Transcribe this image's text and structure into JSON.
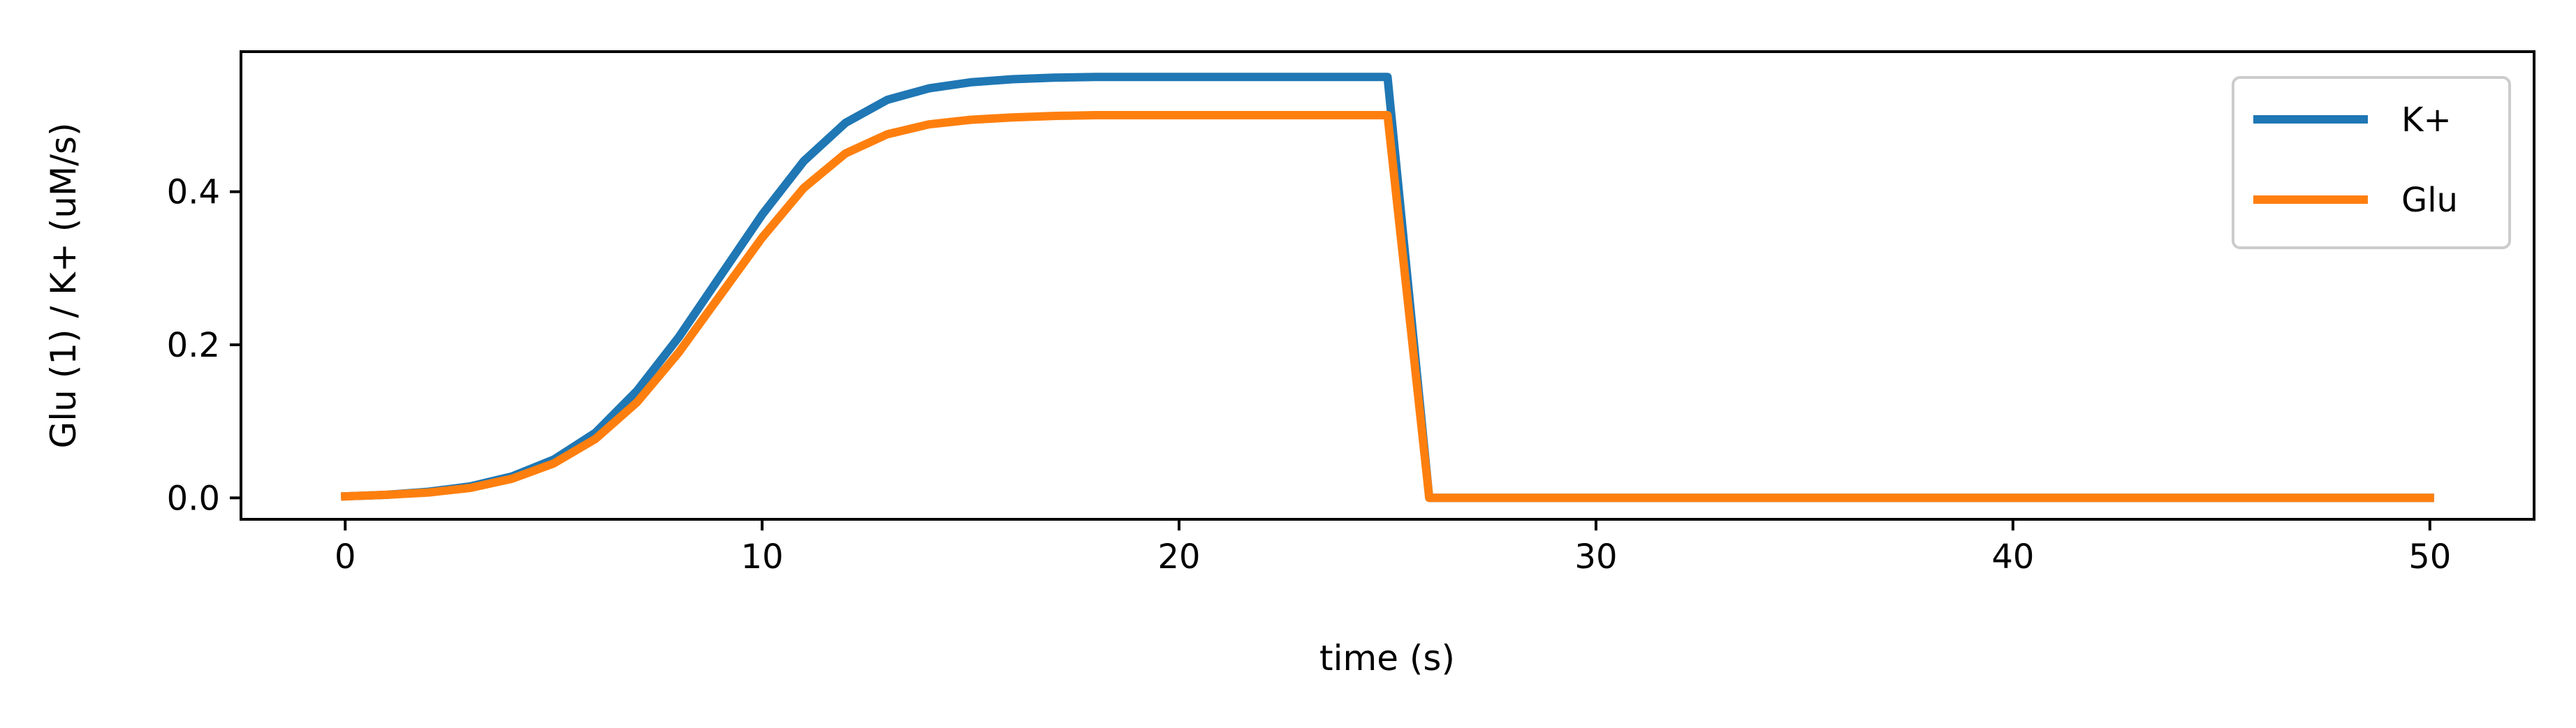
{
  "chart_data": {
    "type": "line",
    "title": "",
    "xlabel": "time (s)",
    "ylabel": "Glu (1) / K+ (uM/s)",
    "xlim": [
      -2.5,
      52.5
    ],
    "ylim": [
      -0.028,
      0.583
    ],
    "xticks": [
      0,
      10,
      20,
      30,
      40,
      50
    ],
    "xtick_labels": [
      "0",
      "10",
      "20",
      "30",
      "40",
      "50"
    ],
    "yticks": [
      0.0,
      0.2,
      0.4
    ],
    "ytick_labels": [
      "0.0",
      "0.2",
      "0.4"
    ],
    "grid": false,
    "legend_position": "top-right",
    "series": [
      {
        "name": "K+",
        "color": "#1f77b4",
        "x": [
          0,
          1,
          2,
          3,
          4,
          5,
          6,
          7,
          8,
          9,
          10,
          11,
          12,
          13,
          14,
          15,
          16,
          17,
          18,
          19,
          20,
          21,
          22,
          23,
          24,
          25,
          26,
          27,
          28,
          29,
          30,
          31,
          32,
          33,
          34,
          35,
          36,
          37,
          38,
          39,
          40,
          41,
          42,
          43,
          44,
          45,
          46,
          47,
          48,
          49,
          50
        ],
        "y": [
          0.002,
          0.004,
          0.008,
          0.015,
          0.028,
          0.05,
          0.085,
          0.14,
          0.21,
          0.29,
          0.37,
          0.44,
          0.49,
          0.52,
          0.535,
          0.543,
          0.547,
          0.549,
          0.55,
          0.55,
          0.55,
          0.55,
          0.55,
          0.55,
          0.55,
          0.55,
          0.0,
          0.0,
          0.0,
          0.0,
          0.0,
          0.0,
          0.0,
          0.0,
          0.0,
          0.0,
          0.0,
          0.0,
          0.0,
          0.0,
          0.0,
          0.0,
          0.0,
          0.0,
          0.0,
          0.0,
          0.0,
          0.0,
          0.0,
          0.0,
          0.0
        ]
      },
      {
        "name": "Glu",
        "color": "#ff7f0e",
        "x": [
          0,
          1,
          2,
          3,
          4,
          5,
          6,
          7,
          8,
          9,
          10,
          11,
          12,
          13,
          14,
          15,
          16,
          17,
          18,
          19,
          20,
          21,
          22,
          23,
          24,
          25,
          26,
          27,
          28,
          29,
          30,
          31,
          32,
          33,
          34,
          35,
          36,
          37,
          38,
          39,
          40,
          41,
          42,
          43,
          44,
          45,
          46,
          47,
          48,
          49,
          50
        ],
        "y": [
          0.002,
          0.004,
          0.007,
          0.013,
          0.025,
          0.045,
          0.077,
          0.125,
          0.19,
          0.265,
          0.34,
          0.405,
          0.45,
          0.475,
          0.488,
          0.494,
          0.497,
          0.499,
          0.5,
          0.5,
          0.5,
          0.5,
          0.5,
          0.5,
          0.5,
          0.5,
          0.0,
          0.0,
          0.0,
          0.0,
          0.0,
          0.0,
          0.0,
          0.0,
          0.0,
          0.0,
          0.0,
          0.0,
          0.0,
          0.0,
          0.0,
          0.0,
          0.0,
          0.0,
          0.0,
          0.0,
          0.0,
          0.0,
          0.0,
          0.0,
          0.0
        ]
      }
    ]
  }
}
